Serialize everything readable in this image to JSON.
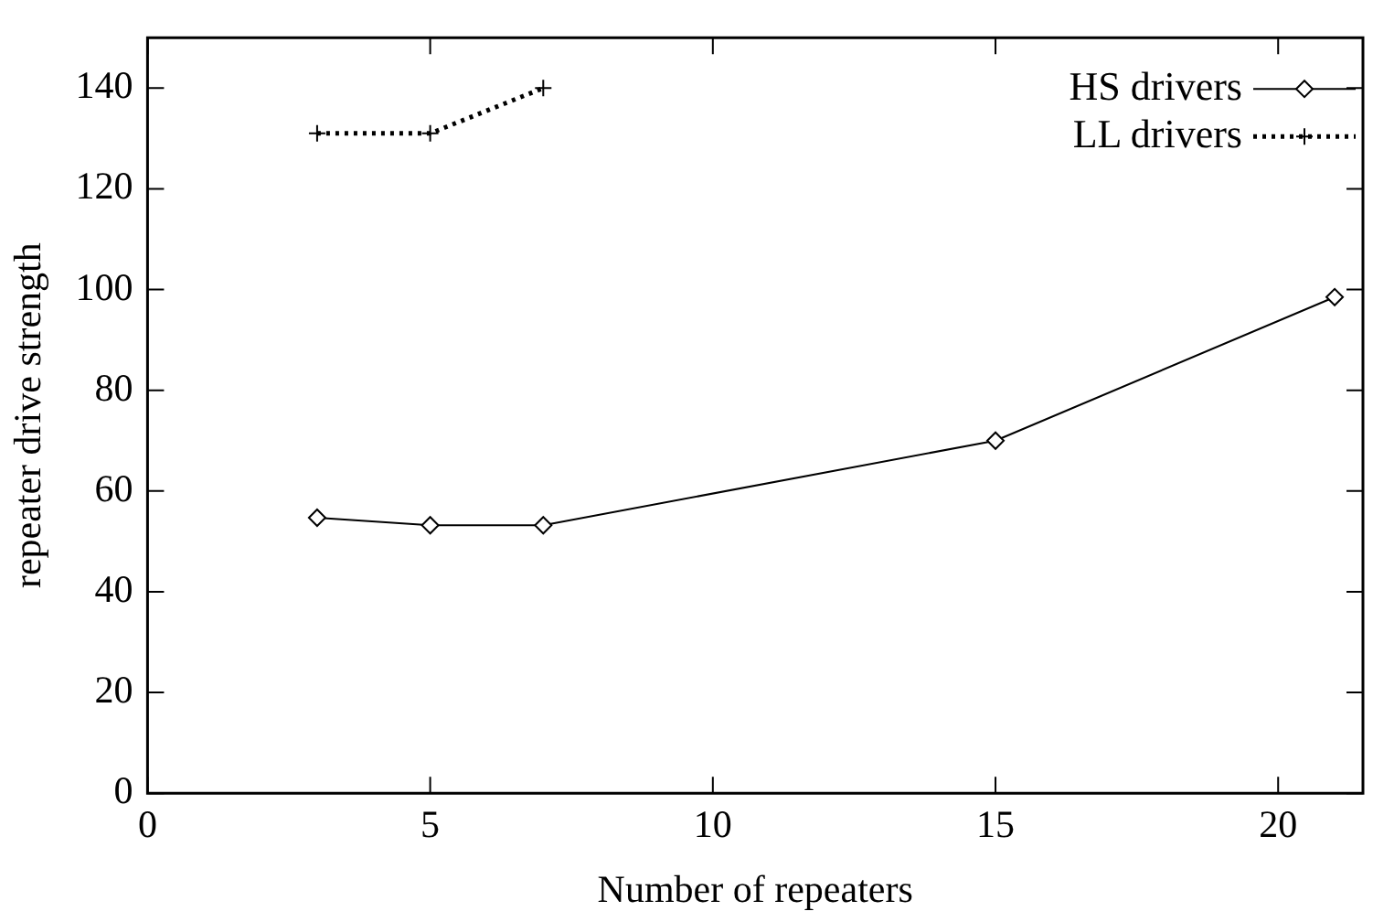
{
  "chart_data": {
    "type": "line",
    "xlabel": "Number of repeaters",
    "ylabel": "repeater drive strength",
    "xlim": [
      0,
      21.5
    ],
    "xticks": [
      0,
      5,
      10,
      15,
      20
    ],
    "ylim": [
      0,
      150
    ],
    "yticks": [
      0,
      20,
      40,
      60,
      80,
      100,
      120,
      140
    ],
    "grid": false,
    "legend": "top right",
    "series": [
      {
        "name": "HS drivers",
        "color": "#000000",
        "marker": "diamond",
        "line_style": "solid",
        "x": [
          3,
          5,
          7,
          15,
          21
        ],
        "values": [
          54.7,
          53.2,
          53.2,
          70,
          98.5
        ]
      },
      {
        "name": "LL drivers",
        "color": "#000000",
        "marker": "cross",
        "line_style": "dotted",
        "x": [
          3,
          5,
          7
        ],
        "values": [
          131,
          131,
          140
        ]
      }
    ]
  }
}
